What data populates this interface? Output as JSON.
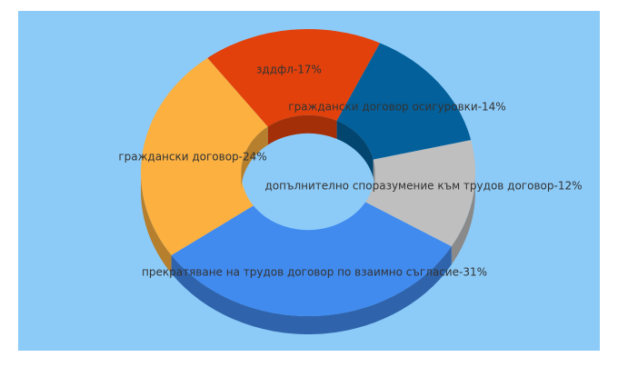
{
  "chart_data": {
    "type": "donut3d",
    "value_labels": [
      "зддфл-17%",
      "граждански договор осигуровки-14%",
      "допълнително споразумение към трудов договор-12%",
      "прекратяване на трудов договор по взаимно съгласие-31%",
      "граждански договор-24%"
    ],
    "values": [
      17,
      14,
      12,
      31,
      24
    ],
    "colors": [
      "#e2410b",
      "#03609a",
      "#bfbfbf",
      "#418bef",
      "#fbb040"
    ]
  }
}
